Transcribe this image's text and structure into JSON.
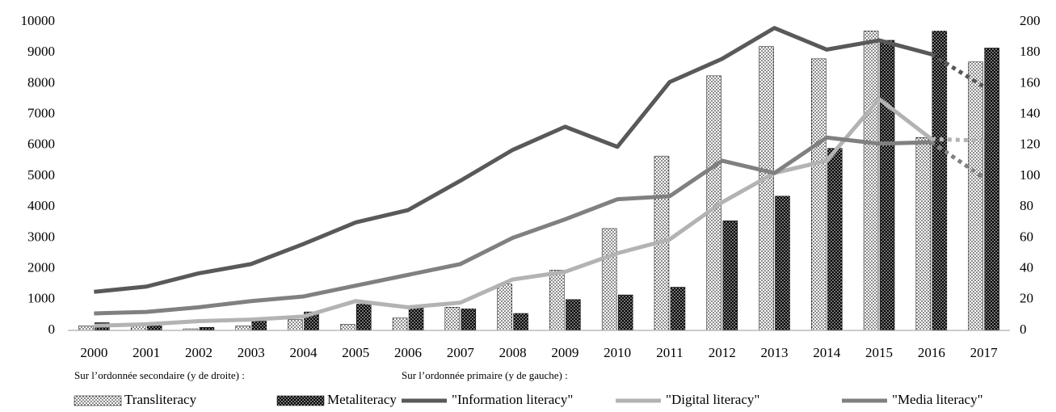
{
  "chart_data": {
    "type": "combo",
    "categories": [
      "2000",
      "2001",
      "2002",
      "2003",
      "2004",
      "2005",
      "2006",
      "2007",
      "2008",
      "2009",
      "2010",
      "2011",
      "2012",
      "2013",
      "2014",
      "2015",
      "2016",
      "2017"
    ],
    "series": [
      {
        "name": "Transliteracy",
        "type": "bar",
        "axis": "y2",
        "color": "#000000",
        "pattern": "sparse-dots",
        "values": [
          3,
          3,
          1,
          3,
          7,
          4,
          8,
          15,
          30,
          39,
          66,
          113,
          165,
          184,
          176,
          194,
          125,
          174
        ]
      },
      {
        "name": "Metaliteracy",
        "type": "bar",
        "axis": "y2",
        "color": "#000000",
        "pattern": "dense-dots",
        "values": [
          5,
          4,
          2,
          6,
          12,
          17,
          15,
          14,
          11,
          20,
          23,
          28,
          71,
          87,
          118,
          188,
          194,
          183
        ]
      },
      {
        "name": "\"Information literacy\"",
        "type": "line",
        "color": "#595959",
        "values": [
          1250,
          1420,
          1850,
          2150,
          2800,
          3500,
          3900,
          4850,
          5850,
          6600,
          5950,
          8050,
          8800,
          9800,
          9100,
          9400,
          8950,
          7900
        ]
      },
      {
        "name": "\"Digital literacy\"",
        "type": "line",
        "color": "#b3b3b3",
        "values": [
          150,
          200,
          300,
          350,
          450,
          950,
          750,
          900,
          1650,
          1900,
          2500,
          2950,
          4150,
          5100,
          5500,
          7500,
          6200,
          6150
        ]
      },
      {
        "name": "\"Media literacy\"",
        "type": "line",
        "color": "#808080",
        "values": [
          550,
          600,
          750,
          950,
          1100,
          1450,
          1800,
          2150,
          3000,
          3600,
          4250,
          4350,
          5500,
          5100,
          6250,
          6050,
          6100,
          4950
        ]
      }
    ],
    "legend_notes": [
      "Sur l’ordonnée secondaire (y de droite) :",
      "Sur l’ordonnée primaire (y de gauche) :"
    ],
    "dotted_last_segment": true,
    "ylim": [
      0,
      10000
    ],
    "yticks": [
      0,
      1000,
      2000,
      3000,
      4000,
      5000,
      6000,
      7000,
      8000,
      9000,
      10000
    ],
    "y2lim": [
      0,
      200
    ],
    "y2ticks": [
      0,
      20,
      40,
      60,
      80,
      100,
      120,
      140,
      160,
      180,
      200
    ],
    "grid": false,
    "legend": "bottom"
  }
}
